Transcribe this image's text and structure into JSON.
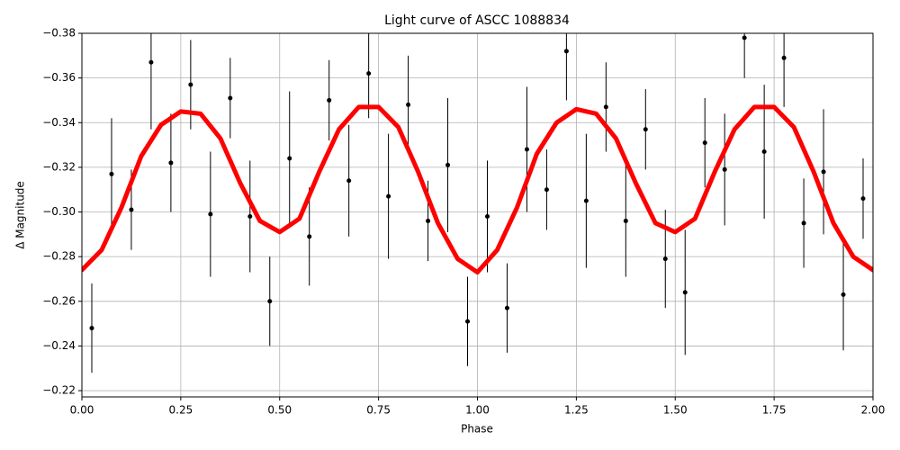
{
  "chart_data": {
    "type": "scatter",
    "title": "Light curve of ASCC 1088834",
    "x_label": "Phase",
    "y_label": "Δ Magnitude",
    "xlim": [
      0,
      2
    ],
    "ylim": [
      -0.2172,
      -0.38
    ],
    "grid": true,
    "xticks": [
      {
        "value": 0,
        "label": "0.00"
      },
      {
        "value": 0.25,
        "label": "0.25"
      },
      {
        "value": 0.5,
        "label": "0.50"
      },
      {
        "value": 0.75,
        "label": "0.75"
      },
      {
        "value": 1,
        "label": "1.00"
      },
      {
        "value": 1.25,
        "label": "1.25"
      },
      {
        "value": 1.5,
        "label": "1.50"
      },
      {
        "value": 1.75,
        "label": "1.75"
      },
      {
        "value": 2,
        "label": "2.00"
      }
    ],
    "yticks": [
      {
        "value": -0.22,
        "label": "−0.22"
      },
      {
        "value": -0.24,
        "label": "−0.24"
      },
      {
        "value": -0.26,
        "label": "−0.26"
      },
      {
        "value": -0.28,
        "label": "−0.28"
      },
      {
        "value": -0.3,
        "label": "−0.30"
      },
      {
        "value": -0.32,
        "label": "−0.32"
      },
      {
        "value": -0.34,
        "label": "−0.34"
      },
      {
        "value": -0.36,
        "label": "−0.36"
      },
      {
        "value": -0.38,
        "label": "−0.38"
      }
    ],
    "series": [
      {
        "kind": "points",
        "color": "#000000",
        "x": [
          0.025,
          0.075,
          0.125,
          0.175,
          0.225,
          0.275,
          0.325,
          0.375,
          0.425,
          0.475,
          0.525,
          0.575,
          0.625,
          0.675,
          0.725,
          0.775,
          0.825,
          0.875,
          0.925,
          0.975,
          1.025,
          1.075,
          1.125,
          1.175,
          1.225,
          1.275,
          1.325,
          1.375,
          1.425,
          1.475,
          1.525,
          1.575,
          1.625,
          1.675,
          1.725,
          1.775,
          1.825,
          1.875,
          1.925,
          1.975
        ],
        "values": [
          -0.248,
          -0.317,
          -0.301,
          -0.367,
          -0.322,
          -0.357,
          -0.299,
          -0.351,
          -0.298,
          -0.26,
          -0.324,
          -0.289,
          -0.35,
          -0.314,
          -0.362,
          -0.307,
          -0.348,
          -0.296,
          -0.321,
          -0.251,
          -0.298,
          -0.257,
          -0.328,
          -0.31,
          -0.372,
          -0.305,
          -0.347,
          -0.296,
          -0.337,
          -0.279,
          -0.264,
          -0.331,
          -0.319,
          -0.378,
          -0.327,
          -0.369,
          -0.295,
          -0.318,
          -0.263,
          -0.306
        ],
        "errors": [
          0.02,
          0.025,
          0.018,
          0.03,
          0.022,
          0.02,
          0.028,
          0.018,
          0.025,
          0.02,
          0.03,
          0.022,
          0.018,
          0.025,
          0.02,
          0.028,
          0.022,
          0.018,
          0.03,
          0.02,
          0.025,
          0.02,
          0.028,
          0.018,
          0.022,
          0.03,
          0.02,
          0.025,
          0.018,
          0.022,
          0.028,
          0.02,
          0.025,
          0.018,
          0.03,
          0.022,
          0.02,
          0.028,
          0.025,
          0.018
        ]
      },
      {
        "kind": "line",
        "color": "#ff0000",
        "x": [
          0,
          0.05,
          0.1,
          0.15,
          0.2,
          0.25,
          0.3,
          0.35,
          0.4,
          0.45,
          0.5,
          0.55,
          0.6,
          0.65,
          0.7,
          0.75,
          0.8,
          0.85,
          0.9,
          0.95,
          1,
          1.05,
          1.1,
          1.15,
          1.2,
          1.25,
          1.3,
          1.35,
          1.4,
          1.45,
          1.5,
          1.55,
          1.6,
          1.65,
          1.7,
          1.75,
          1.8,
          1.85,
          1.9,
          1.95,
          2
        ],
        "values": [
          -0.274,
          -0.283,
          -0.302,
          -0.325,
          -0.339,
          -0.345,
          -0.344,
          -0.333,
          -0.313,
          -0.296,
          -0.291,
          -0.297,
          -0.318,
          -0.337,
          -0.347,
          -0.347,
          -0.338,
          -0.318,
          -0.295,
          -0.279,
          -0.273,
          -0.283,
          -0.302,
          -0.326,
          -0.34,
          -0.346,
          -0.344,
          -0.333,
          -0.313,
          -0.295,
          -0.291,
          -0.297,
          -0.318,
          -0.337,
          -0.347,
          -0.347,
          -0.338,
          -0.318,
          -0.295,
          -0.28,
          -0.274
        ]
      }
    ]
  }
}
